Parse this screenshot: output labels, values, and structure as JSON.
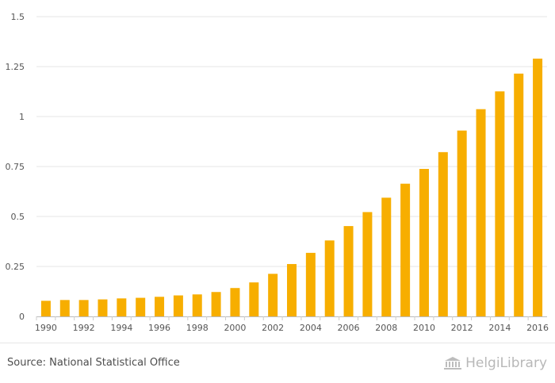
{
  "chart_data": {
    "type": "bar",
    "title": "",
    "xlabel": "",
    "ylabel": "",
    "ylim": [
      0,
      1.5
    ],
    "yticks": [
      "0",
      "0.25",
      "0.5",
      "0.75",
      "1",
      "1.25",
      "1.5"
    ],
    "ytick_values": [
      0,
      0.25,
      0.5,
      0.75,
      1,
      1.25,
      1.5
    ],
    "categories": [
      "1990",
      "1991",
      "1992",
      "1993",
      "1994",
      "1995",
      "1996",
      "1997",
      "1998",
      "1999",
      "2000",
      "2001",
      "2002",
      "2003",
      "2004",
      "2005",
      "2006",
      "2007",
      "2008",
      "2009",
      "2010",
      "2011",
      "2012",
      "2013",
      "2014",
      "2015",
      "2016"
    ],
    "xtick_labels": [
      "1990",
      "1992",
      "1994",
      "1996",
      "1998",
      "2000",
      "2002",
      "2004",
      "2006",
      "2008",
      "2010",
      "2012",
      "2014",
      "2016"
    ],
    "values": [
      0.078,
      0.082,
      0.082,
      0.085,
      0.09,
      0.093,
      0.098,
      0.105,
      0.11,
      0.122,
      0.142,
      0.17,
      0.213,
      0.262,
      0.318,
      0.38,
      0.452,
      0.522,
      0.594,
      0.664,
      0.738,
      0.822,
      0.93,
      1.037,
      1.126,
      1.215,
      1.29
    ],
    "bar_color": "#f7ae00",
    "grid": true
  },
  "footer": {
    "source": "Source: National Statistical Office",
    "brand": "HelgiLibrary"
  }
}
